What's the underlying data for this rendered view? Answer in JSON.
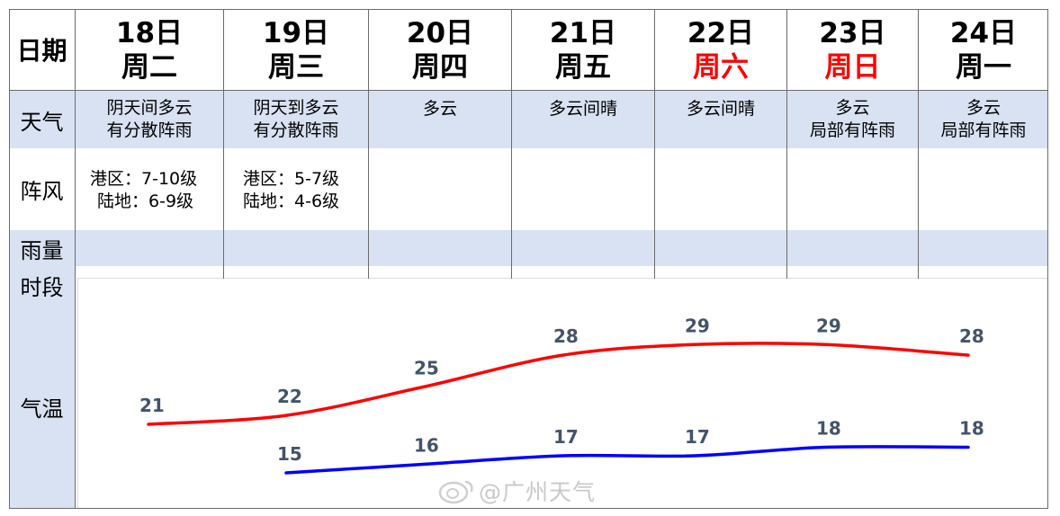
{
  "header": {
    "label": "日期"
  },
  "days": [
    {
      "date": "18日",
      "week": "周二",
      "weather": [
        "阴天间多云",
        "有分散阵雨"
      ],
      "gust": [
        "港区：7-10级",
        "陆地：6-9级"
      ]
    },
    {
      "date": "19日",
      "week": "周三",
      "weather": [
        "阴天到多云",
        "有分散阵雨"
      ],
      "gust": [
        "港区：5-7级",
        "陆地：4-6级"
      ]
    },
    {
      "date": "20日",
      "week": "周四",
      "weather": [
        "多云",
        ""
      ],
      "gust": [
        "",
        ""
      ]
    },
    {
      "date": "21日",
      "week": "周五",
      "weather": [
        "多云间晴",
        ""
      ],
      "gust": [
        "",
        ""
      ]
    },
    {
      "date": "22日",
      "week": "周六",
      "weather": [
        "多云间晴",
        ""
      ],
      "gust": [
        "",
        ""
      ]
    },
    {
      "date": "23日",
      "week": "周日",
      "weather": [
        "多云",
        "局部有阵雨"
      ],
      "gust": [
        "",
        ""
      ]
    },
    {
      "date": "24日",
      "week": "周一",
      "weather": [
        "多云",
        "局部有阵雨"
      ],
      "gust": [
        "",
        ""
      ]
    }
  ],
  "rows": {
    "weather": "天气",
    "gust": "阵风",
    "rain": "雨量",
    "period": "时段",
    "temp": "气温"
  },
  "colors": {
    "band": "#d9e2f2",
    "weekend": "#ff0000",
    "high_line": "#ff0000",
    "low_line": "#0000ff",
    "temp_label": "#44546a"
  },
  "chart_data": {
    "type": "line",
    "categories": [
      "18日",
      "19日",
      "20日",
      "21日",
      "22日",
      "23日",
      "24日"
    ],
    "series": [
      {
        "values": [
          21,
          22,
          25,
          28,
          29,
          29,
          28
        ]
      },
      {
        "values": [
          null,
          15,
          16,
          17,
          17,
          18,
          18
        ]
      }
    ]
  },
  "watermark": "@广州天气"
}
